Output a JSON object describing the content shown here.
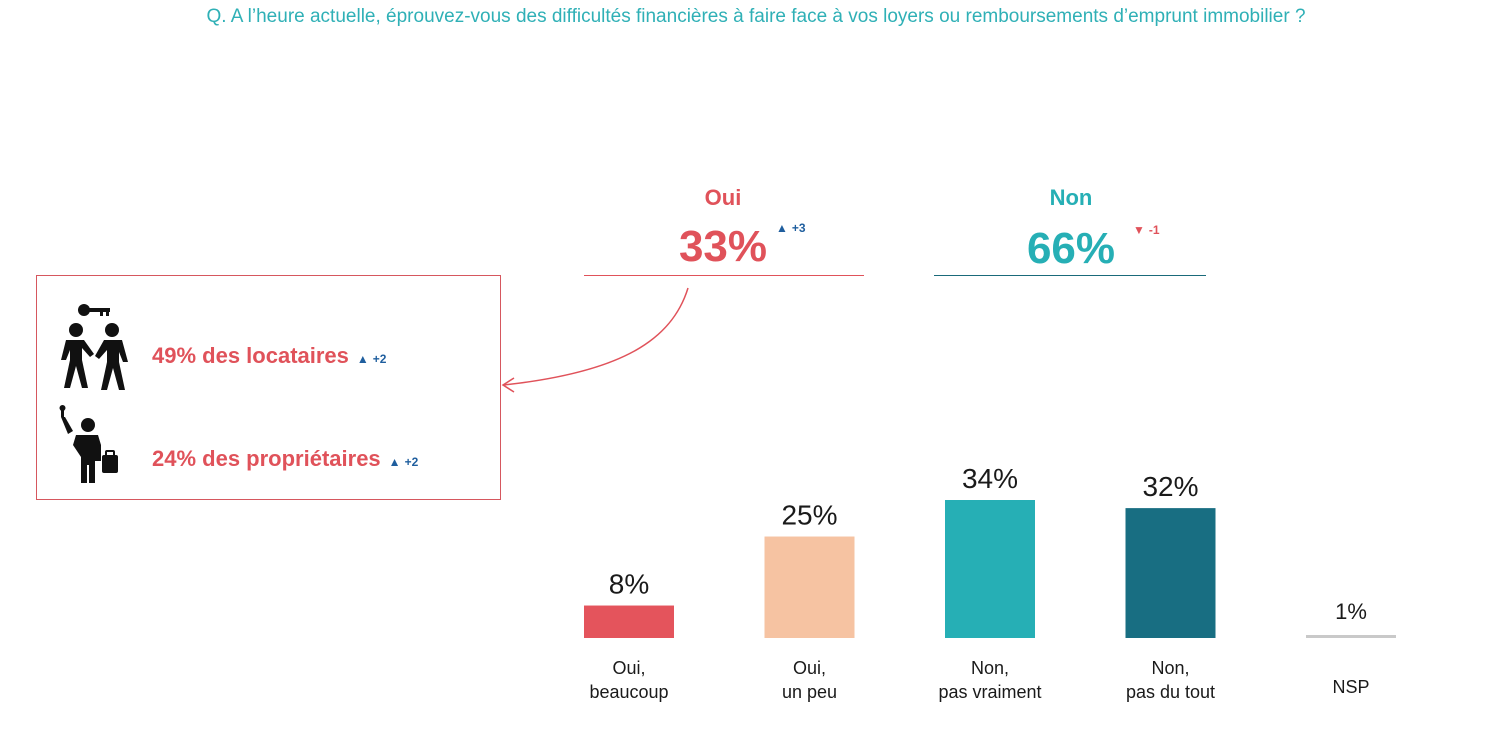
{
  "question": "Q. A l’heure actuelle, éprouvez-vous des difficultés financières à faire face à vos loyers ou remboursements d’emprunt immobilier ?",
  "summary": {
    "oui": {
      "label": "Oui",
      "value": "33%",
      "delta": "+3",
      "direction": "up"
    },
    "non": {
      "label": "Non",
      "value": "66%",
      "delta": "-1",
      "direction": "down"
    }
  },
  "segments": [
    {
      "text": "49% des locataires",
      "delta": "+2",
      "direction": "up",
      "icon": "tenants-handshake-key-icon"
    },
    {
      "text": "24% des propriétaires",
      "delta": "+2",
      "direction": "up",
      "icon": "owner-with-key-and-briefcase-icon"
    }
  ],
  "colors": {
    "question": "#2fb0b6",
    "oui": "#e0525a",
    "oui_accent": "#e0525a",
    "non": "#26afb5",
    "non_rule": "#1a6a7a",
    "delta_up": "#1f5e9e",
    "delta_down": "#e0525a",
    "callout_border": "#d6575e",
    "text": "#1a1a1a"
  },
  "chart_data": {
    "type": "bar",
    "categories": [
      "Oui,\nbeaucoup",
      "Oui,\nun peu",
      "Non,\npas vraiment",
      "Non,\npas du tout",
      "NSP"
    ],
    "values": [
      8,
      25,
      34,
      32,
      1
    ],
    "value_labels": [
      "8%",
      "25%",
      "34%",
      "32%",
      "1%"
    ],
    "colors": [
      "#e4545c",
      "#f6c3a2",
      "#26afb5",
      "#186e82",
      "#c9c9c9"
    ],
    "ylim": [
      0,
      34
    ],
    "grid": false,
    "legend": "none"
  }
}
